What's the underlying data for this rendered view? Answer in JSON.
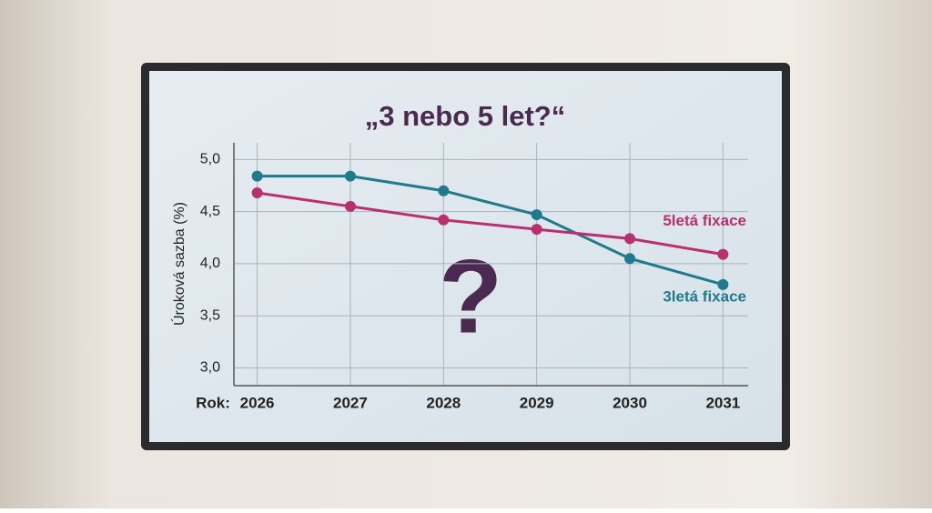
{
  "chart_data": {
    "type": "line",
    "title": "„3 nebo 5 let?“",
    "x_label": "Rok:",
    "y_label": "Úroková sazba (%)",
    "annotation": "?",
    "x": [
      2026,
      2027,
      2028,
      2029,
      2030,
      2031
    ],
    "series": [
      {
        "name": "3letá fixace",
        "color": "#1f7a8c",
        "values": [
          4.84,
          4.84,
          4.7,
          4.47,
          4.05,
          3.8
        ]
      },
      {
        "name": "5letá fixace",
        "color": "#b8306f",
        "values": [
          4.68,
          4.55,
          4.42,
          4.33,
          4.24,
          4.09
        ]
      }
    ],
    "xlim": [
      2025.75,
      2031.27
    ],
    "xticks": [
      2026,
      2027,
      2028,
      2029,
      2030,
      2031
    ],
    "ylim": [
      2.83,
      5.16
    ],
    "yticks": [
      {
        "value": 3,
        "label": "3,0"
      },
      {
        "value": 3.5,
        "label": "3,5"
      },
      {
        "value": 4,
        "label": "4,0"
      },
      {
        "value": 4.5,
        "label": "4,5"
      },
      {
        "value": 5,
        "label": "5,0"
      }
    ],
    "grid": true
  }
}
